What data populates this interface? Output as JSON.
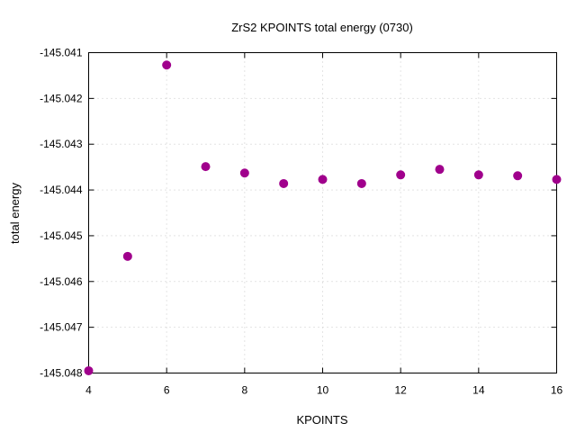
{
  "chart_data": {
    "type": "scatter",
    "title": "ZrS2 KPOINTS total energy (0730)",
    "xlabel": "KPOINTS",
    "ylabel": "total energy",
    "xlim": [
      4,
      16
    ],
    "ylim": [
      -145.048,
      -145.041
    ],
    "xticks": [
      "4",
      "6",
      "8",
      "10",
      "12",
      "14",
      "16"
    ],
    "yticks": [
      "-145.041",
      "-145.042",
      "-145.043",
      "-145.044",
      "-145.045",
      "-145.046",
      "-145.047",
      "-145.048"
    ],
    "grid": true,
    "legend": "none",
    "marker_color": "#a0008c",
    "series": [
      {
        "x": [
          4,
          5,
          6,
          7,
          8,
          9,
          10,
          11,
          12,
          13,
          14,
          15,
          16
        ],
        "y": [
          -145.04795,
          -145.04545,
          -145.04127,
          -145.04349,
          -145.04363,
          -145.04386,
          -145.04377,
          -145.04386,
          -145.04367,
          -145.04355,
          -145.04367,
          -145.04369,
          -145.04377
        ]
      }
    ]
  }
}
